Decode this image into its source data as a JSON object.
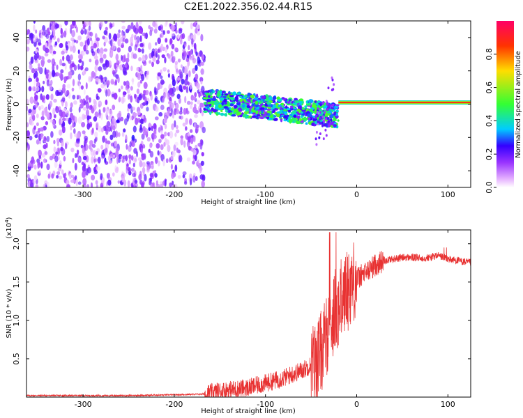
{
  "title": "C2E1.2022.356.02.44.R15",
  "chart_data": [
    {
      "type": "heatmap",
      "xlabel": "Height of straight line (km)",
      "ylabel": "Frequency (Hz)",
      "xlim": [
        -362,
        125
      ],
      "ylim": [
        -50,
        50
      ],
      "xticks": [
        -300,
        -200,
        -100,
        0,
        100
      ],
      "yticks": [
        -40,
        -20,
        0,
        20,
        40
      ],
      "colorbar": {
        "label": "Normalized spectral amplitude",
        "range": [
          0,
          1
        ],
        "ticks": [
          "0.0",
          "0.2",
          "0.4",
          "0.6",
          "0.8"
        ],
        "colormap": [
          "#ffffff",
          "#e6b3ff",
          "#9933ff",
          "#3300ff",
          "#00ccff",
          "#33ff33",
          "#ffdd00",
          "#ff3300",
          "#ff0066"
        ]
      },
      "regions": [
        {
          "name": "noise",
          "x_range": [
            -362,
            -167
          ],
          "freq_range": [
            -50,
            50
          ],
          "amplitude": [
            0.0,
            0.15
          ]
        },
        {
          "name": "scintillating_signal",
          "x_range": [
            -167,
            -20
          ],
          "freq_center": 2,
          "freq_spread": [
            -15,
            8
          ],
          "amplitude": [
            0.1,
            0.5
          ]
        },
        {
          "name": "tone",
          "x_range": [
            -20,
            125
          ],
          "freq_center": 1,
          "amplitude": [
            0.5,
            0.9
          ]
        }
      ]
    },
    {
      "type": "line",
      "title": "",
      "xlabel": "Height of straight line (km)",
      "ylabel": "SNR (10 * v/v)",
      "ylabel_exponent": "(x10",
      "ylabel_exponent_power": "4",
      "ylabel_exponent_close": ")",
      "xlim": [
        -362,
        125
      ],
      "ylim": [
        0,
        2.18
      ],
      "xticks": [
        -300,
        -200,
        -100,
        0,
        100
      ],
      "yticks": [
        "0.5",
        "1.0",
        "1.5",
        "2.0"
      ],
      "series": [
        {
          "color": "#e83232",
          "x": [
            -362,
            -300,
            -250,
            -200,
            -167,
            -150,
            -120,
            -100,
            -80,
            -60,
            -45,
            -35,
            -30,
            -25,
            -20,
            -15,
            -10,
            -5,
            0,
            10,
            20,
            30,
            40,
            50,
            60,
            70,
            80,
            90,
            95,
            100,
            110,
            120,
            125
          ],
          "y": [
            0.02,
            0.02,
            0.02,
            0.03,
            0.04,
            0.08,
            0.12,
            0.18,
            0.25,
            0.35,
            0.45,
            0.7,
            0.95,
            1.1,
            1.2,
            1.3,
            1.4,
            1.5,
            1.55,
            1.62,
            1.72,
            1.78,
            1.8,
            1.82,
            1.82,
            1.81,
            1.82,
            1.85,
            1.82,
            1.8,
            1.78,
            1.76,
            1.75
          ]
        }
      ]
    }
  ]
}
